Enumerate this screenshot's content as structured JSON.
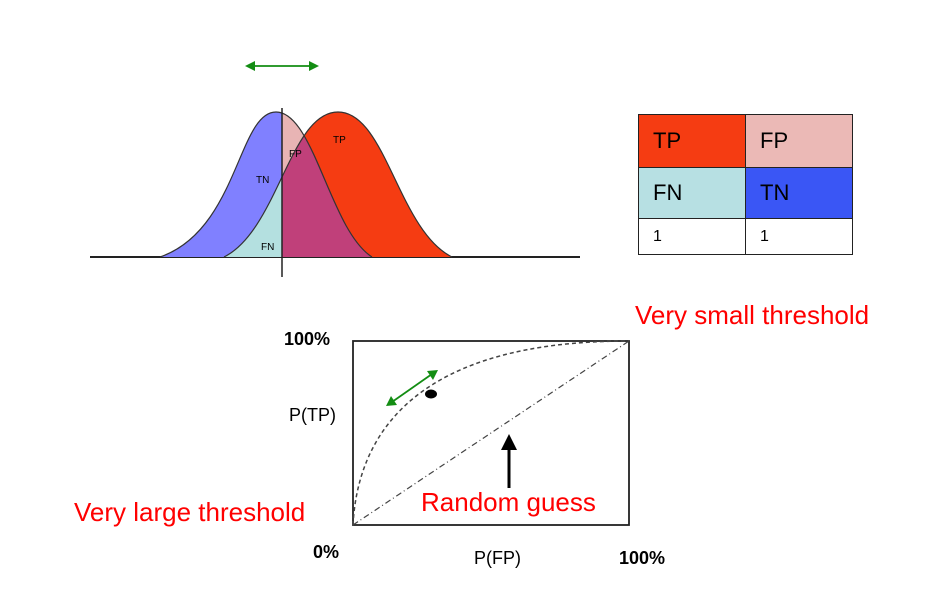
{
  "distributions": {
    "regions": {
      "tn": "TN",
      "fp": "FP",
      "fn": "FN",
      "tp": "TP"
    },
    "colors": {
      "negative": "#8080ff",
      "positive": "#f53c12",
      "overlap": "#c0407a",
      "fp": "#e8b4b4",
      "fn": "#b4e0e0",
      "arrow": "#138d13"
    }
  },
  "confusion_matrix": {
    "rows": [
      [
        {
          "label": "TP",
          "color": "#f53c12"
        },
        {
          "label": "FP",
          "color": "#ebb9b6"
        }
      ],
      [
        {
          "label": "FN",
          "color": "#b7e0e3"
        },
        {
          "label": "TN",
          "color": "#3a56f5"
        }
      ],
      [
        {
          "label": "1",
          "color": "#ffffff"
        },
        {
          "label": "1",
          "color": "#ffffff"
        }
      ]
    ]
  },
  "roc": {
    "y_max_label": "100%",
    "y_label": "P(TP)",
    "origin_label": "0%",
    "x_label": "P(FP)",
    "x_max_label": "100%"
  },
  "annotations": {
    "small_threshold": "Very small threshold",
    "large_threshold": "Very large threshold",
    "random_guess": "Random guess"
  }
}
